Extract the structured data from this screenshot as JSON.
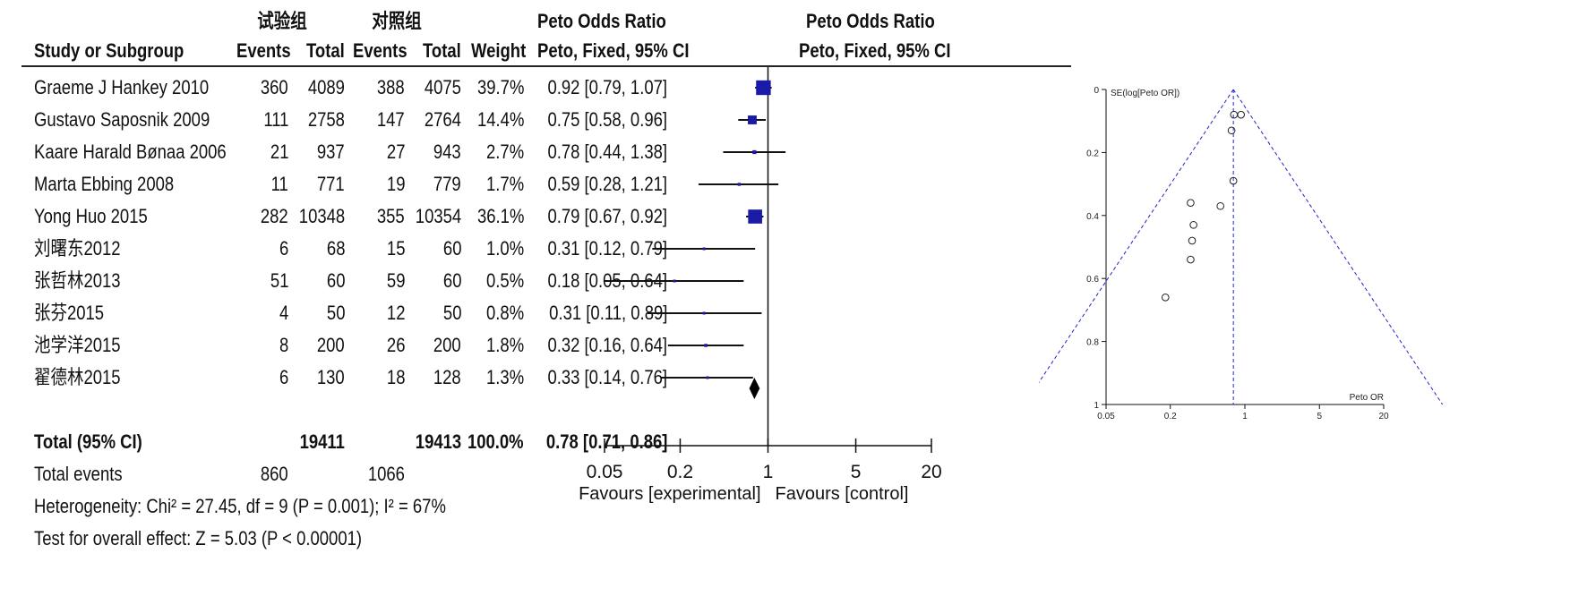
{
  "table": {
    "group_headers": {
      "experimental": "试验组",
      "control": "对照组"
    },
    "headers": {
      "study": "Study or Subgroup",
      "exp_events": "Events",
      "exp_total": "Total",
      "ctl_events": "Events",
      "ctl_total": "Total",
      "weight": "Weight",
      "or_title": "Peto Odds Ratio",
      "or_subtitle": "Peto, Fixed, 95% CI",
      "plot_title": "Peto Odds Ratio",
      "plot_subtitle": "Peto, Fixed, 95% CI"
    },
    "rows": [
      {
        "study": "Graeme J Hankey  2010",
        "exp_events": "360",
        "exp_total": "4089",
        "ctl_events": "388",
        "ctl_total": "4075",
        "weight": "39.7%",
        "ci": "0.92 [0.79, 1.07]"
      },
      {
        "study": "Gustavo Saposnik  2009",
        "exp_events": "111",
        "exp_total": "2758",
        "ctl_events": "147",
        "ctl_total": "2764",
        "weight": "14.4%",
        "ci": "0.75 [0.58, 0.96]"
      },
      {
        "study": "Kaare Harald Bønaa  2006",
        "exp_events": "21",
        "exp_total": "937",
        "ctl_events": "27",
        "ctl_total": "943",
        "weight": "2.7%",
        "ci": "0.78 [0.44, 1.38]"
      },
      {
        "study": "Marta Ebbing  2008",
        "exp_events": "11",
        "exp_total": "771",
        "ctl_events": "19",
        "ctl_total": "779",
        "weight": "1.7%",
        "ci": "0.59 [0.28, 1.21]"
      },
      {
        "study": "Yong Huo   2015",
        "exp_events": "282",
        "exp_total": "10348",
        "ctl_events": "355",
        "ctl_total": "10354",
        "weight": "36.1%",
        "ci": "0.79 [0.67, 0.92]"
      },
      {
        "study": "刘曙东2012",
        "exp_events": "6",
        "exp_total": "68",
        "ctl_events": "15",
        "ctl_total": "60",
        "weight": "1.0%",
        "ci": "0.31 [0.12, 0.79]"
      },
      {
        "study": "张哲林2013",
        "exp_events": "51",
        "exp_total": "60",
        "ctl_events": "59",
        "ctl_total": "60",
        "weight": "0.5%",
        "ci": "0.18 [0.05, 0.64]"
      },
      {
        "study": "张芬2015",
        "exp_events": "4",
        "exp_total": "50",
        "ctl_events": "12",
        "ctl_total": "50",
        "weight": "0.8%",
        "ci": "0.31 [0.11, 0.89]"
      },
      {
        "study": "池学洋2015",
        "exp_events": "8",
        "exp_total": "200",
        "ctl_events": "26",
        "ctl_total": "200",
        "weight": "1.8%",
        "ci": "0.32 [0.16, 0.64]"
      },
      {
        "study": "翟德林2015",
        "exp_events": "6",
        "exp_total": "130",
        "ctl_events": "18",
        "ctl_total": "128",
        "weight": "1.3%",
        "ci": "0.33 [0.14, 0.76]"
      }
    ],
    "total": {
      "label": "Total (95% CI)",
      "exp_total": "19411",
      "ctl_total": "19413",
      "weight": "100.0%",
      "ci": "0.78 [0.71, 0.86]"
    },
    "events": {
      "label": "Total events",
      "exp": "860",
      "ctl": "1066"
    },
    "heterogeneity": "Heterogeneity: Chi² = 27.45, df = 9 (P = 0.001); I² = 67%",
    "overall_effect": "Test for overall effect: Z = 5.03 (P < 0.00001)"
  },
  "chart_data": [
    {
      "type": "forest",
      "x_scale": "log",
      "xlim": [
        0.05,
        20
      ],
      "ticks": [
        "0.05",
        "0.2",
        "1",
        "5",
        "20"
      ],
      "tick_values": [
        0.05,
        0.2,
        1,
        5,
        20
      ],
      "xlabel_left": "Favours [experimental]",
      "xlabel_right": "Favours [control]",
      "study_estimates": [
        {
          "or": 0.92,
          "lo": 0.79,
          "hi": 1.07,
          "weight": 39.7
        },
        {
          "or": 0.75,
          "lo": 0.58,
          "hi": 0.96,
          "weight": 14.4
        },
        {
          "or": 0.78,
          "lo": 0.44,
          "hi": 1.38,
          "weight": 2.7
        },
        {
          "or": 0.59,
          "lo": 0.28,
          "hi": 1.21,
          "weight": 1.7
        },
        {
          "or": 0.79,
          "lo": 0.67,
          "hi": 0.92,
          "weight": 36.1
        },
        {
          "or": 0.31,
          "lo": 0.12,
          "hi": 0.79,
          "weight": 1.0
        },
        {
          "or": 0.18,
          "lo": 0.05,
          "hi": 0.64,
          "weight": 0.5
        },
        {
          "or": 0.31,
          "lo": 0.11,
          "hi": 0.89,
          "weight": 0.8
        },
        {
          "or": 0.32,
          "lo": 0.16,
          "hi": 0.64,
          "weight": 1.8
        },
        {
          "or": 0.33,
          "lo": 0.14,
          "hi": 0.76,
          "weight": 1.3
        }
      ],
      "pooled": {
        "or": 0.78,
        "lo": 0.71,
        "hi": 0.86
      },
      "marker_color": "#1a1aa6"
    },
    {
      "type": "scatter",
      "subtype": "funnel",
      "ylabel": "SE(log[Peto OR])",
      "xlabel": "Peto OR",
      "x_scale": "log",
      "xlim": [
        0.05,
        20
      ],
      "ylim": [
        0,
        1
      ],
      "y_reversed": true,
      "x_ticks": [
        "0.05",
        "0.2",
        "1",
        "5",
        "20"
      ],
      "x_tick_values": [
        0.05,
        0.2,
        1,
        5,
        20
      ],
      "y_ticks": [
        "0",
        "0.2",
        "0.4",
        "0.6",
        "0.8",
        "1"
      ],
      "y_tick_values": [
        0,
        0.2,
        0.4,
        0.6,
        0.8,
        1
      ],
      "center_or": 0.78,
      "points": [
        {
          "x": 0.92,
          "y": 0.08
        },
        {
          "x": 0.79,
          "y": 0.08
        },
        {
          "x": 0.75,
          "y": 0.13
        },
        {
          "x": 0.78,
          "y": 0.29
        },
        {
          "x": 0.59,
          "y": 0.37
        },
        {
          "x": 0.31,
          "y": 0.36
        },
        {
          "x": 0.33,
          "y": 0.43
        },
        {
          "x": 0.32,
          "y": 0.48
        },
        {
          "x": 0.31,
          "y": 0.54
        },
        {
          "x": 0.18,
          "y": 0.66
        }
      ],
      "line_color": "#2323c8"
    }
  ]
}
